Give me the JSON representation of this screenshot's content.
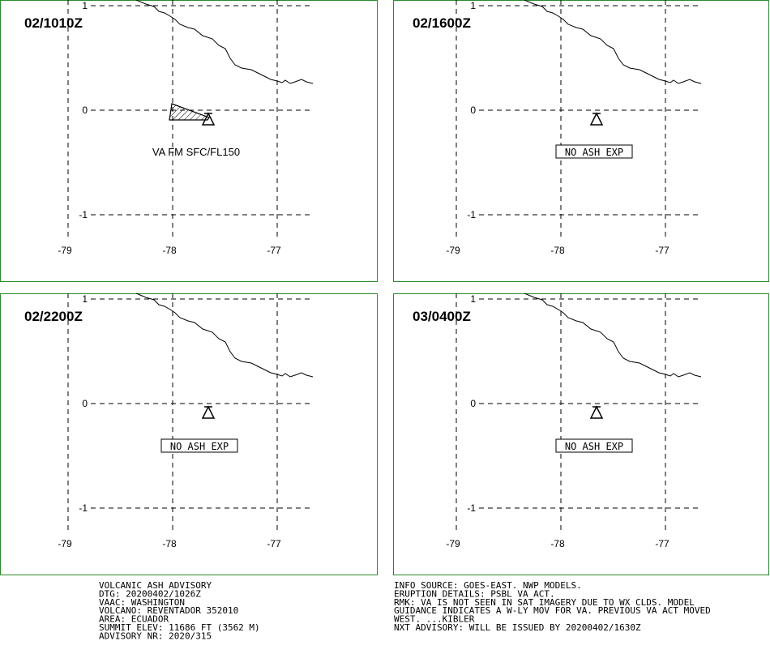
{
  "panels": [
    {
      "time": "02/1010Z",
      "annotation": "VA FM SFC/FL150",
      "annotation_boxed": false,
      "ash_area": true
    },
    {
      "time": "02/1600Z",
      "annotation": "NO ASH EXP",
      "annotation_boxed": true,
      "ash_area": false
    },
    {
      "time": "02/2200Z",
      "annotation": "NO ASH EXP",
      "annotation_boxed": true,
      "ash_area": false
    },
    {
      "time": "03/0400Z",
      "annotation": "NO ASH EXP",
      "annotation_boxed": true,
      "ash_area": false
    }
  ],
  "lat_labels": [
    "1",
    "0",
    "-1"
  ],
  "lon_labels": [
    "-79",
    "-78",
    "-77"
  ],
  "advisory_left": [
    "VOLCANIC ASH ADVISORY",
    "DTG: 20200402/1026Z",
    "VAAC: WASHINGTON",
    "VOLCANO: REVENTADOR 352010",
    "AREA: ECUADOR",
    "SUMMIT ELEV: 11686 FT (3562 M)",
    "ADVISORY NR: 2020/315"
  ],
  "advisory_right": [
    "INFO SOURCE: GOES-EAST. NWP MODELS.",
    "ERUPTION DETAILS: PSBL VA ACT.",
    "RMK: VA IS NOT SEEN IN SAT IMAGERY DUE TO WX CLDS. MODEL",
    "GUIDANCE INDICATES A W-LY MOV FOR VA. PREVIOUS VA ACT MOVED",
    "WEST. ...KIBLER",
    "NXT ADVISORY: WILL BE ISSUED BY 20200402/1630Z"
  ]
}
